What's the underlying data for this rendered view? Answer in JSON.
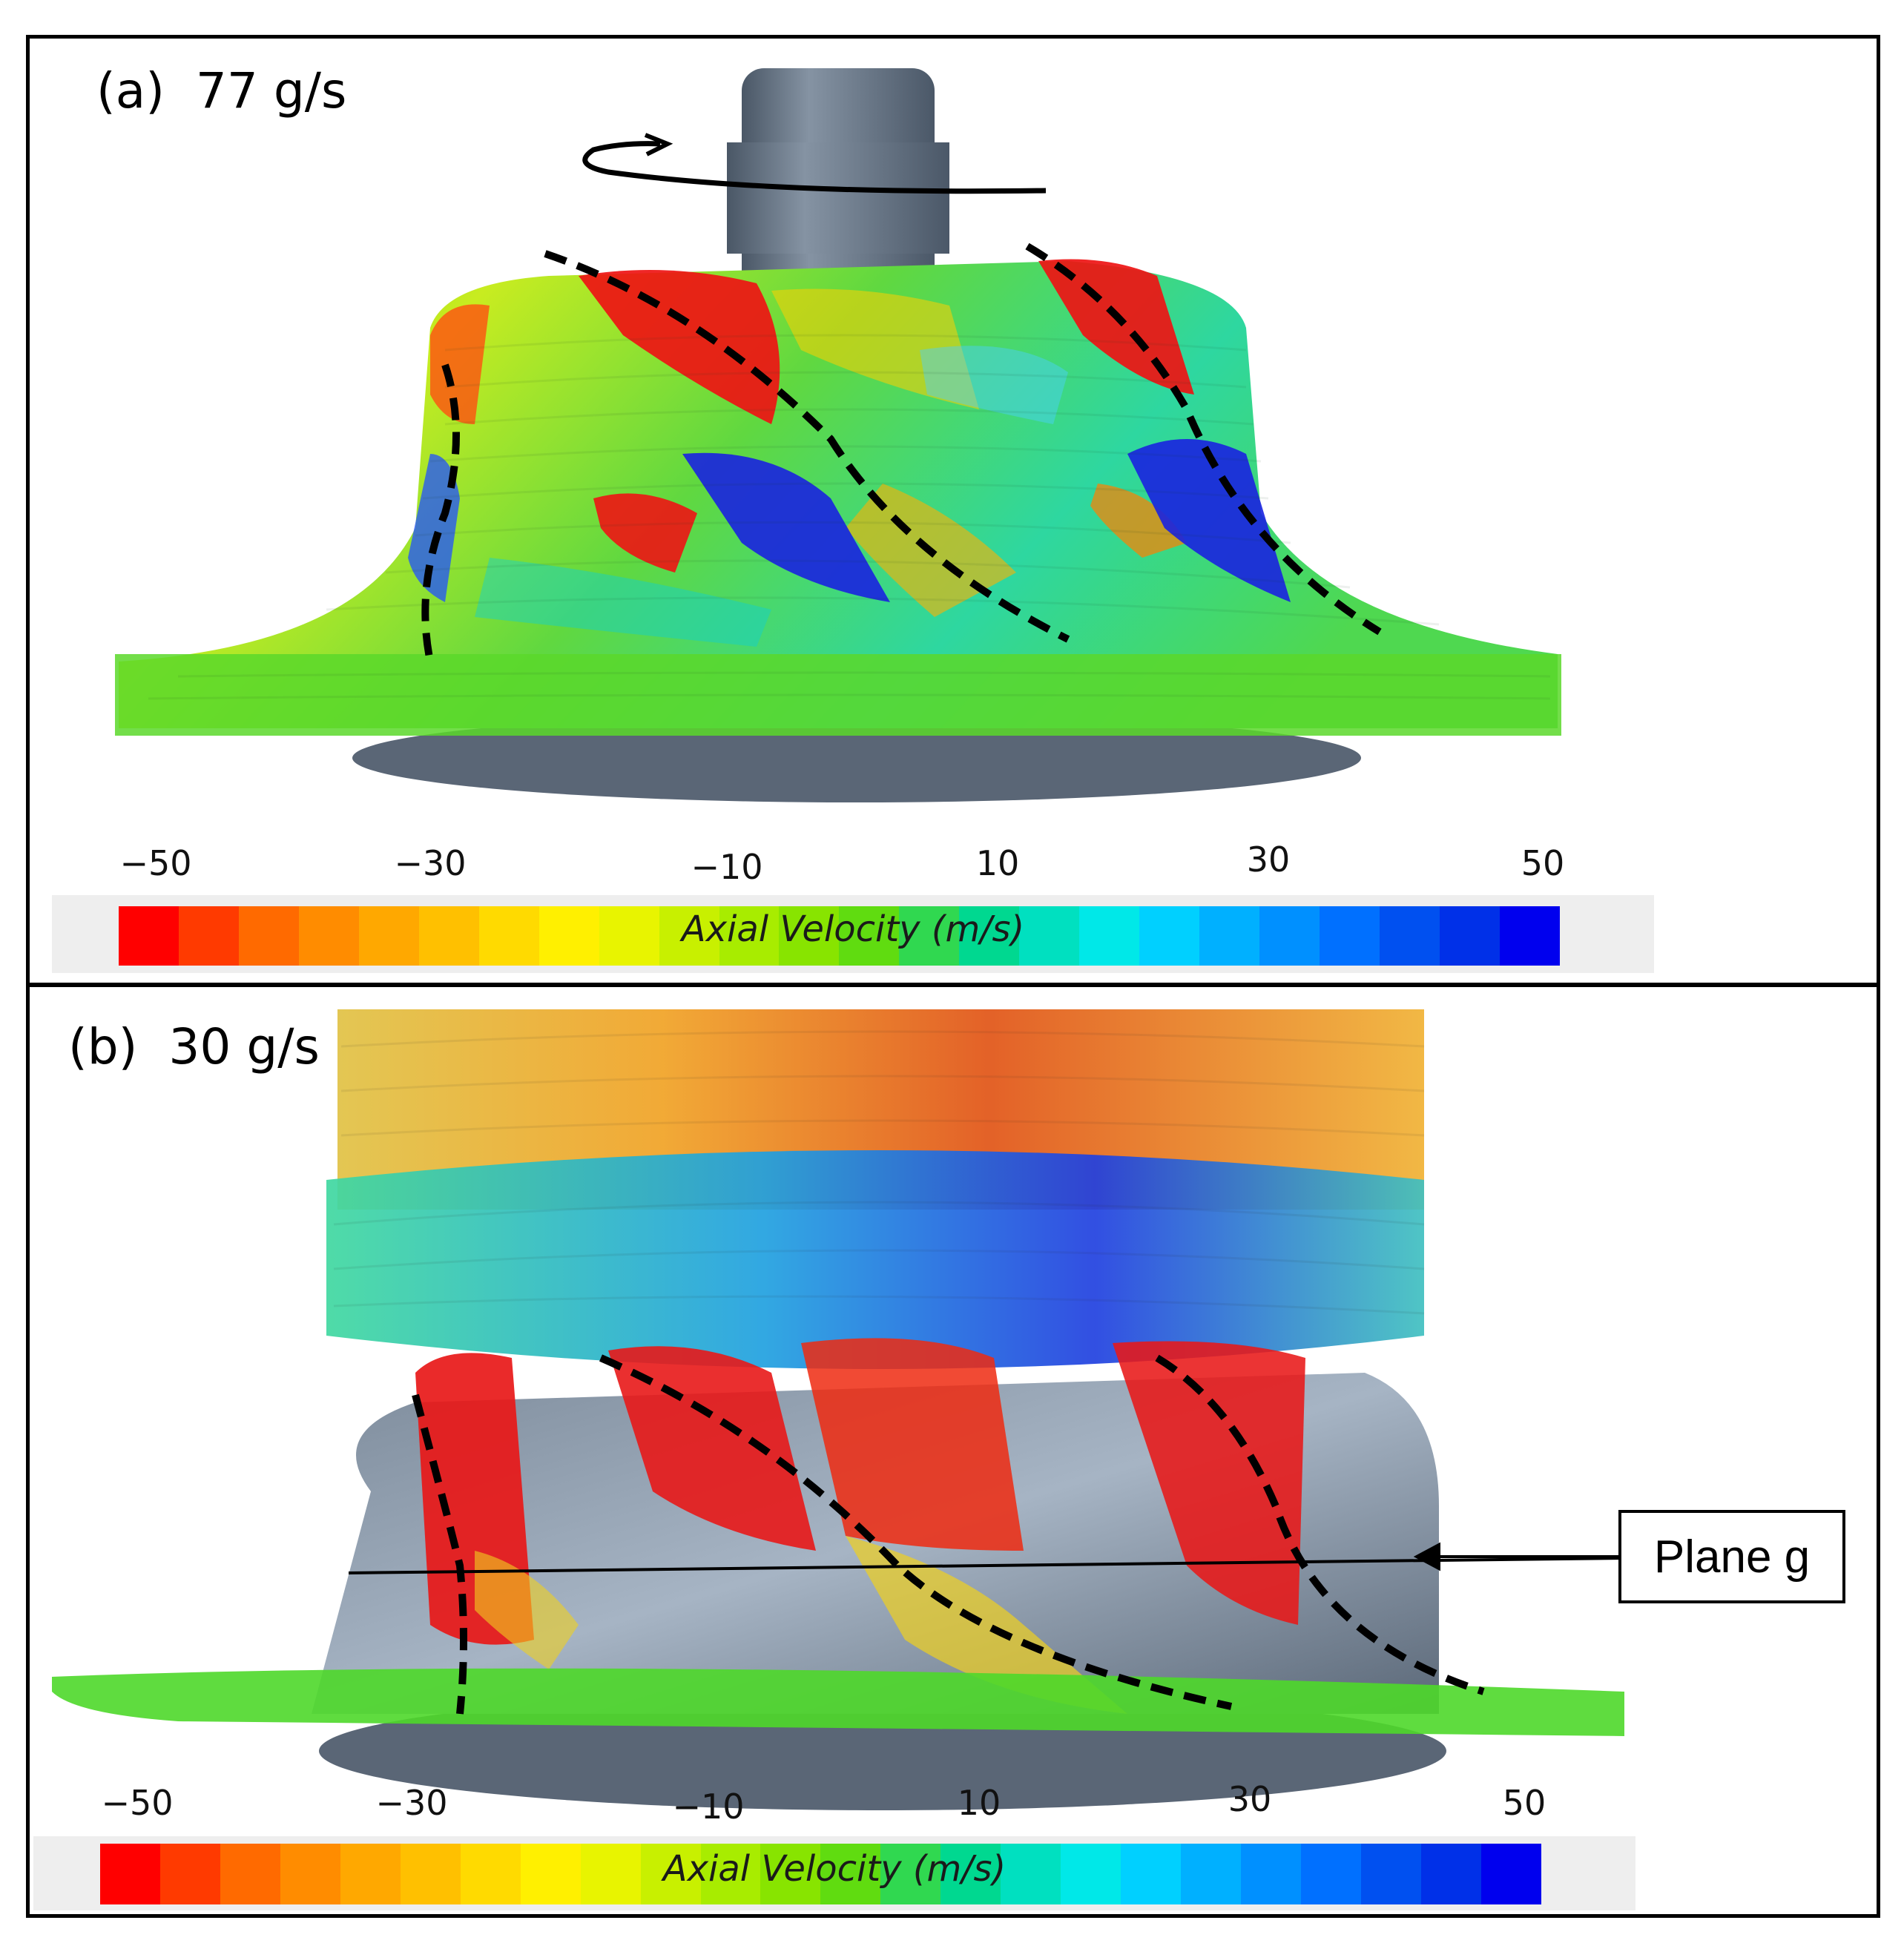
{
  "panel_a": {
    "label": "(a)  77 g/s",
    "colorbar": {
      "title": "Axial Velocity (m/s)",
      "ticks": [
        "−50",
        "−30",
        "−10",
        "10",
        "30",
        "50"
      ],
      "colors": [
        "#ff0000",
        "#ff3a00",
        "#ff6a00",
        "#ff8c00",
        "#ffa800",
        "#ffc000",
        "#ffda00",
        "#fff000",
        "#e8f400",
        "#c8f000",
        "#a8ec00",
        "#88e400",
        "#60dc10",
        "#30d850",
        "#00d890",
        "#00e0c0",
        "#00e8e8",
        "#00d0ff",
        "#00b0ff",
        "#0090ff",
        "#0070ff",
        "#0050f0",
        "#0030e8",
        "#0000ee"
      ]
    }
  },
  "panel_b": {
    "label": "(b)  30 g/s",
    "colorbar": {
      "title": "Axial Velocity (m/s)",
      "ticks": [
        "−50",
        "−30",
        "−10",
        "10",
        "30",
        "50"
      ],
      "colors": [
        "#ff0000",
        "#ff3a00",
        "#ff6a00",
        "#ff8c00",
        "#ffa800",
        "#ffc000",
        "#ffda00",
        "#fff000",
        "#e8f400",
        "#c8f000",
        "#a8ec00",
        "#88e400",
        "#60dc10",
        "#30d850",
        "#00d890",
        "#00e0c0",
        "#00e8e8",
        "#00d0ff",
        "#00b0ff",
        "#0090ff",
        "#0070ff",
        "#0050f0",
        "#0030e8",
        "#0000ee"
      ]
    },
    "callout": "Plane g"
  }
}
